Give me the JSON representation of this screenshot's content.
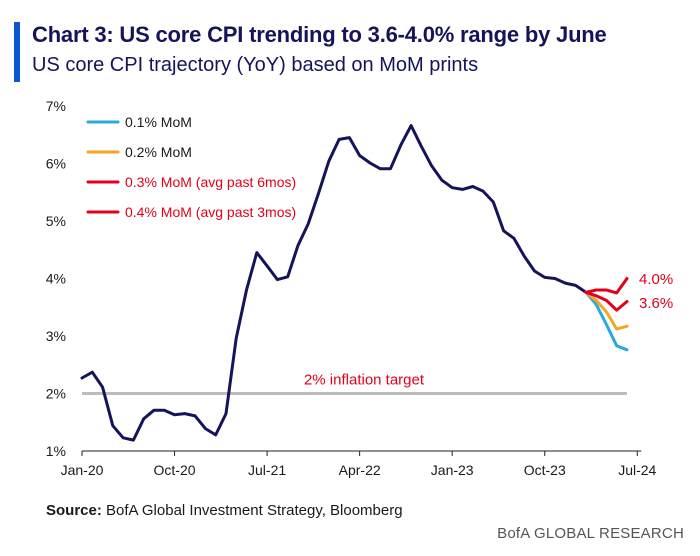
{
  "header": {
    "title": "Chart 3: US core CPI trending to 3.6-4.0% range by June",
    "subtitle": "US core CPI trajectory (YoY) based on MoM prints"
  },
  "footer": {
    "source_label": "Source:",
    "source_text": "BofA Global Investment Strategy, Bloomberg",
    "brand": "BofA GLOBAL RESEARCH"
  },
  "colors": {
    "accent": "#0a56d4",
    "title": "#15145a",
    "main_line": "#15145a",
    "target_line": "#bdbdbd",
    "annotation": "#e3001b"
  },
  "chart_data": {
    "type": "line",
    "x": [
      "2020-01",
      "2020-02",
      "2020-03",
      "2020-04",
      "2020-05",
      "2020-06",
      "2020-07",
      "2020-08",
      "2020-09",
      "2020-10",
      "2020-11",
      "2020-12",
      "2021-01",
      "2021-02",
      "2021-03",
      "2021-04",
      "2021-05",
      "2021-06",
      "2021-07",
      "2021-08",
      "2021-09",
      "2021-10",
      "2021-11",
      "2021-12",
      "2022-01",
      "2022-02",
      "2022-03",
      "2022-04",
      "2022-05",
      "2022-06",
      "2022-07",
      "2022-08",
      "2022-09",
      "2022-10",
      "2022-11",
      "2022-12",
      "2023-01",
      "2023-02",
      "2023-03",
      "2023-04",
      "2023-05",
      "2023-06",
      "2023-07",
      "2023-08",
      "2023-09",
      "2023-10",
      "2023-11",
      "2023-12",
      "2024-01",
      "2024-02"
    ],
    "series": [
      {
        "name": "",
        "color": "#15145a",
        "values": [
          2.27,
          2.37,
          2.11,
          1.44,
          1.23,
          1.19,
          1.56,
          1.71,
          1.71,
          1.63,
          1.65,
          1.61,
          1.39,
          1.28,
          1.65,
          2.96,
          3.8,
          4.45,
          4.22,
          3.98,
          4.03,
          4.57,
          4.95,
          5.48,
          6.04,
          6.42,
          6.45,
          6.14,
          6.01,
          5.91,
          5.91,
          6.32,
          6.66,
          6.3,
          5.96,
          5.71,
          5.58,
          5.55,
          5.6,
          5.52,
          5.33,
          4.83,
          4.7,
          4.39,
          4.13,
          4.02,
          4.0,
          3.92,
          3.88,
          3.76
        ]
      },
      {
        "name": "0.1% MoM",
        "color": "#29a8e0",
        "x": [
          "2024-02",
          "2024-03",
          "2024-04",
          "2024-05",
          "2024-06"
        ],
        "values": [
          3.76,
          3.55,
          3.2,
          2.83,
          2.76
        ]
      },
      {
        "name": "0.2% MoM",
        "color": "#f5a623",
        "x": [
          "2024-02",
          "2024-03",
          "2024-04",
          "2024-05",
          "2024-06"
        ],
        "values": [
          3.76,
          3.62,
          3.42,
          3.12,
          3.17
        ]
      },
      {
        "name": "0.3% MoM (avg past 6mos)",
        "color": "#e3001b",
        "x": [
          "2024-02",
          "2024-03",
          "2024-04",
          "2024-05",
          "2024-06"
        ],
        "values": [
          3.76,
          3.7,
          3.62,
          3.45,
          3.6
        ]
      },
      {
        "name": "0.4% MoM (avg past 3mos)",
        "color": "#e3001b",
        "x": [
          "2024-02",
          "2024-03",
          "2024-04",
          "2024-05",
          "2024-06"
        ],
        "values": [
          3.76,
          3.8,
          3.8,
          3.75,
          4.0
        ]
      }
    ],
    "reference_line": {
      "value": 2.0,
      "label": "2% inflation target"
    },
    "end_labels": [
      "4.0%",
      "3.6%"
    ],
    "title": "Chart 3: US core CPI trending to 3.6-4.0% range by June",
    "xlabel": "",
    "ylabel": "",
    "yticks": [
      "1%",
      "2%",
      "3%",
      "4%",
      "5%",
      "6%",
      "7%"
    ],
    "ytick_values": [
      1,
      2,
      3,
      4,
      5,
      6,
      7
    ],
    "xticks": [
      "Jan-20",
      "Oct-20",
      "Jul-21",
      "Apr-22",
      "Jan-23",
      "Oct-23",
      "Jul-24"
    ],
    "xtick_values": [
      "2020-01",
      "2020-10",
      "2021-07",
      "2022-04",
      "2023-01",
      "2023-10",
      "2024-07"
    ],
    "ylim": [
      1,
      7
    ],
    "xlim": [
      "2020-01",
      "2024-07"
    ],
    "grid": false,
    "legend": "top-left"
  }
}
